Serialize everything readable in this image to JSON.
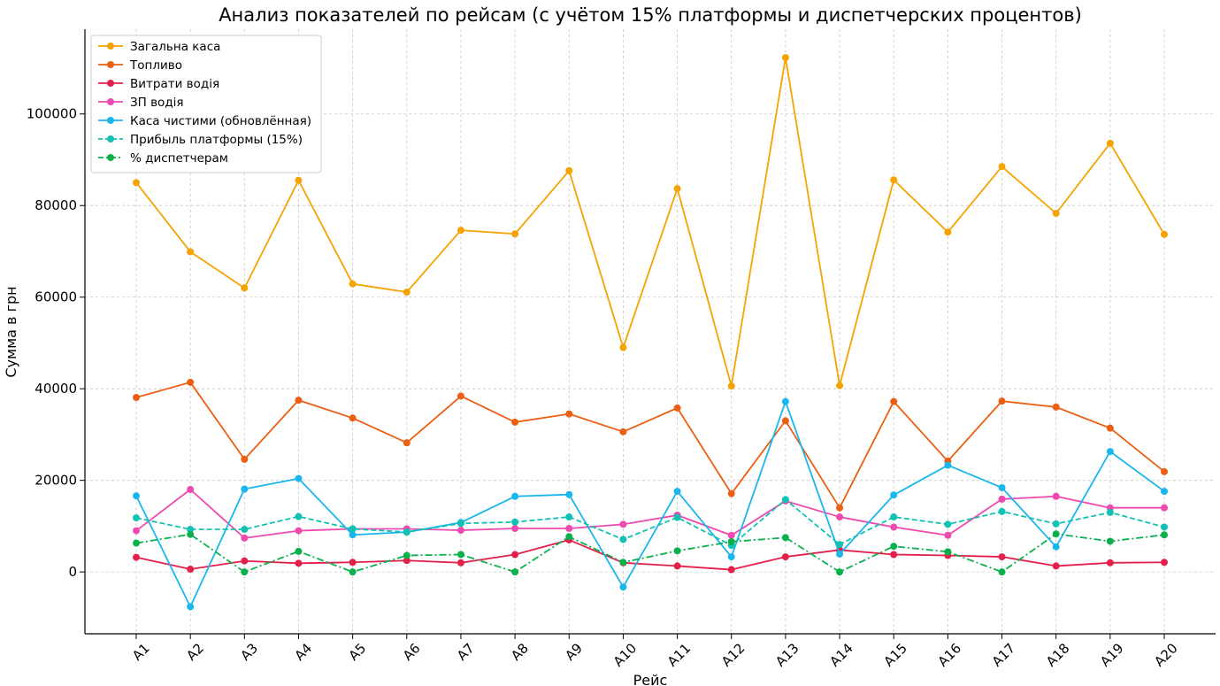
{
  "chart_data": {
    "type": "line",
    "title": "Анализ показателей по рейсам (с учётом 15% платформы и диспетчерских процентов)",
    "xlabel": "Рейс",
    "ylabel": "Сумма в грн",
    "categories": [
      "A1",
      "A2",
      "A3",
      "A4",
      "A5",
      "A6",
      "A7",
      "A8",
      "A9",
      "A10",
      "A11",
      "A12",
      "A13",
      "A14",
      "A15",
      "A16",
      "A17",
      "A18",
      "A19",
      "A20"
    ],
    "ylim": [
      -13500,
      118500
    ],
    "yticks": [
      0,
      20000,
      40000,
      60000,
      80000,
      100000
    ],
    "ytick_labels": [
      "0",
      "20000",
      "40000",
      "60000",
      "80000",
      "100000"
    ],
    "grid": true,
    "legend_position": "top-left",
    "series": [
      {
        "name": "Загальна каса",
        "color": "#f5a300",
        "dash": "solid",
        "values": [
          85000,
          69900,
          62000,
          85500,
          62900,
          61100,
          74600,
          73800,
          87600,
          49000,
          83700,
          40600,
          112300,
          40700,
          85600,
          74200,
          88500,
          78300,
          93600,
          73700
        ]
      },
      {
        "name": "Топливо",
        "color": "#ec5f13",
        "dash": "solid",
        "values": [
          38100,
          41400,
          24600,
          37500,
          33600,
          28200,
          38400,
          32700,
          34500,
          30600,
          35800,
          17100,
          33000,
          14000,
          37200,
          24200,
          37300,
          36000,
          31400,
          21900
        ]
      },
      {
        "name": "Витрати водія",
        "color": "#e3204a",
        "dash": "solid",
        "values": [
          3200,
          600,
          2400,
          1900,
          2100,
          2500,
          2000,
          3800,
          7000,
          2000,
          1300,
          500,
          3300,
          4800,
          3800,
          3600,
          3300,
          1300,
          2000,
          2100
        ]
      },
      {
        "name": "ЗП водія",
        "color": "#ee4aaf",
        "dash": "solid",
        "values": [
          9000,
          18000,
          7400,
          9000,
          9400,
          9400,
          9100,
          9500,
          9500,
          10400,
          12400,
          8000,
          15500,
          12000,
          9800,
          8000,
          15900,
          16500,
          14000,
          14000
        ]
      },
      {
        "name": "Каса чистими (обновлённая)",
        "color": "#1ab6ee",
        "dash": "solid",
        "values": [
          16600,
          -7600,
          18100,
          20400,
          8100,
          8700,
          10800,
          16500,
          16900,
          -3300,
          17600,
          3300,
          37200,
          3900,
          16800,
          23300,
          18400,
          5500,
          26300,
          17600
        ]
      },
      {
        "name": "Прибыль платформы (15%)",
        "color": "#11c2b3",
        "dash": "dashed",
        "values": [
          11800,
          9300,
          9300,
          12100,
          9400,
          8700,
          10600,
          10900,
          12000,
          7100,
          11900,
          5800,
          15800,
          6000,
          12000,
          10400,
          13200,
          10500,
          13000,
          9800
        ]
      },
      {
        "name": "% диспетчерам",
        "color": "#0ab04c",
        "dash": "dashdot",
        "values": [
          6300,
          8200,
          0,
          4500,
          0,
          3600,
          3800,
          0,
          7700,
          2100,
          4600,
          6600,
          7500,
          0,
          5600,
          4400,
          0,
          8300,
          6700,
          8100
        ]
      }
    ]
  }
}
